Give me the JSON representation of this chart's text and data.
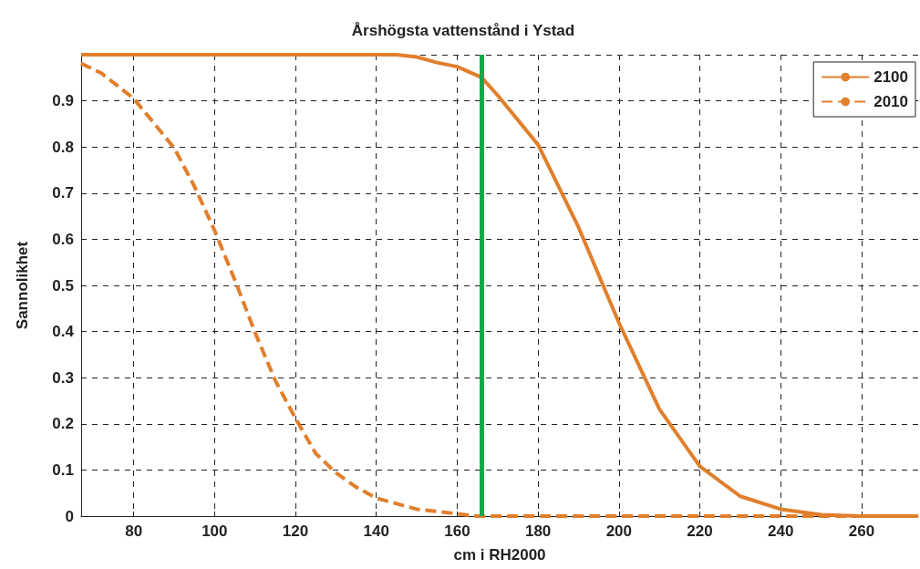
{
  "chart_data": {
    "type": "line",
    "title": "Årshögsta vattenstånd i Ystad",
    "xlabel": "cm i RH2000",
    "ylabel": "Sannolikhet",
    "xlim": [
      67,
      274
    ],
    "xticks": [
      80,
      100,
      120,
      140,
      160,
      180,
      200,
      220,
      240,
      260
    ],
    "ylim": [
      0,
      1
    ],
    "yticks": [
      0,
      0.1,
      0.2,
      0.3,
      0.4,
      0.5,
      0.6,
      0.7,
      0.8,
      0.9,
      {
        "value": 1,
        "label": null
      }
    ],
    "grid": true,
    "legend": "top right",
    "marker": "none",
    "series": [
      {
        "name": "2100",
        "color": "#e07f2c",
        "line_style": "solid",
        "x": [
          67,
          140,
          145,
          150,
          155,
          160,
          166,
          170,
          180,
          190,
          200,
          210,
          220,
          230,
          240,
          250,
          260,
          274
        ],
        "values": [
          1,
          1,
          1,
          0.995,
          0.983,
          0.974,
          0.951,
          0.912,
          0.805,
          0.626,
          0.419,
          0.232,
          0.108,
          0.043,
          0.015,
          0.003,
          0,
          0
        ]
      },
      {
        "name": "2010",
        "color": "#e07f2c",
        "line_style": "dashed",
        "x": [
          67,
          72,
          80,
          90,
          95,
          100,
          105,
          110,
          115,
          120,
          125,
          130,
          135,
          140,
          150,
          160,
          165,
          274
        ],
        "values": [
          0.981,
          0.96,
          0.905,
          0.798,
          0.715,
          0.619,
          0.512,
          0.398,
          0.294,
          0.212,
          0.136,
          0.094,
          0.063,
          0.039,
          0.015,
          0.005,
          0,
          0
        ]
      }
    ],
    "ref_lines": [
      {
        "axis": "x",
        "value": 166,
        "color": "#1aa64a",
        "line_style": "solid"
      }
    ]
  }
}
